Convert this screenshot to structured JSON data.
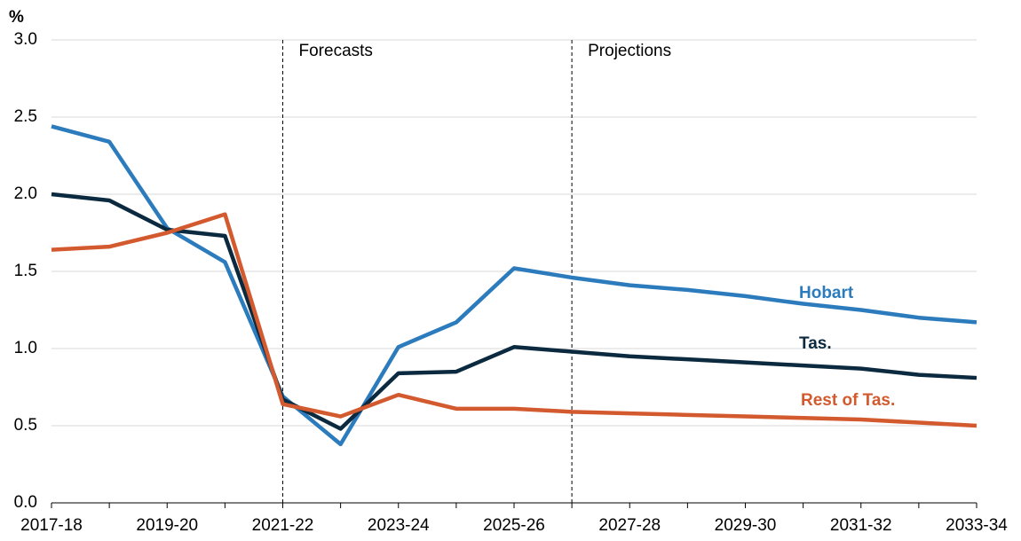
{
  "chart_data": {
    "type": "line",
    "y_label": "%",
    "categories": [
      "2017-18",
      null,
      "2019-20",
      null,
      "2021-22",
      null,
      "2023-24",
      null,
      "2025-26",
      null,
      "2027-28",
      null,
      "2029-30",
      null,
      "2031-32",
      null,
      "2033-34"
    ],
    "series": [
      {
        "name": "Hobart",
        "color": "#2b7bbd",
        "values": [
          2.44,
          2.34,
          1.78,
          1.56,
          0.69,
          0.38,
          1.01,
          1.17,
          1.52,
          1.46,
          1.41,
          1.38,
          1.34,
          1.29,
          1.25,
          1.2,
          1.17
        ]
      },
      {
        "name": "Tas.",
        "color": "#0b2a3f",
        "values": [
          2.0,
          1.96,
          1.77,
          1.73,
          0.67,
          0.48,
          0.84,
          0.85,
          1.01,
          0.98,
          0.95,
          0.93,
          0.91,
          0.89,
          0.87,
          0.83,
          0.81
        ]
      },
      {
        "name": "Rest of Tas.",
        "color": "#d35a2e",
        "values": [
          1.64,
          1.66,
          1.75,
          1.87,
          0.64,
          0.56,
          0.7,
          0.61,
          0.61,
          0.59,
          0.58,
          0.57,
          0.56,
          0.55,
          0.54,
          0.52,
          0.5
        ]
      }
    ],
    "annotations": [
      {
        "text": "Forecasts",
        "x_index": 4
      },
      {
        "text": "Projections",
        "x_index": 9
      }
    ],
    "ylim": [
      0,
      3
    ],
    "yticks": [
      {
        "value": 0,
        "label": "0.0"
      },
      0.5,
      {
        "value": 1,
        "label": "1.0"
      },
      1.5,
      {
        "value": 2,
        "label": "2.0"
      },
      2.5,
      {
        "value": 3,
        "label": "3.0"
      }
    ],
    "grid": true
  }
}
